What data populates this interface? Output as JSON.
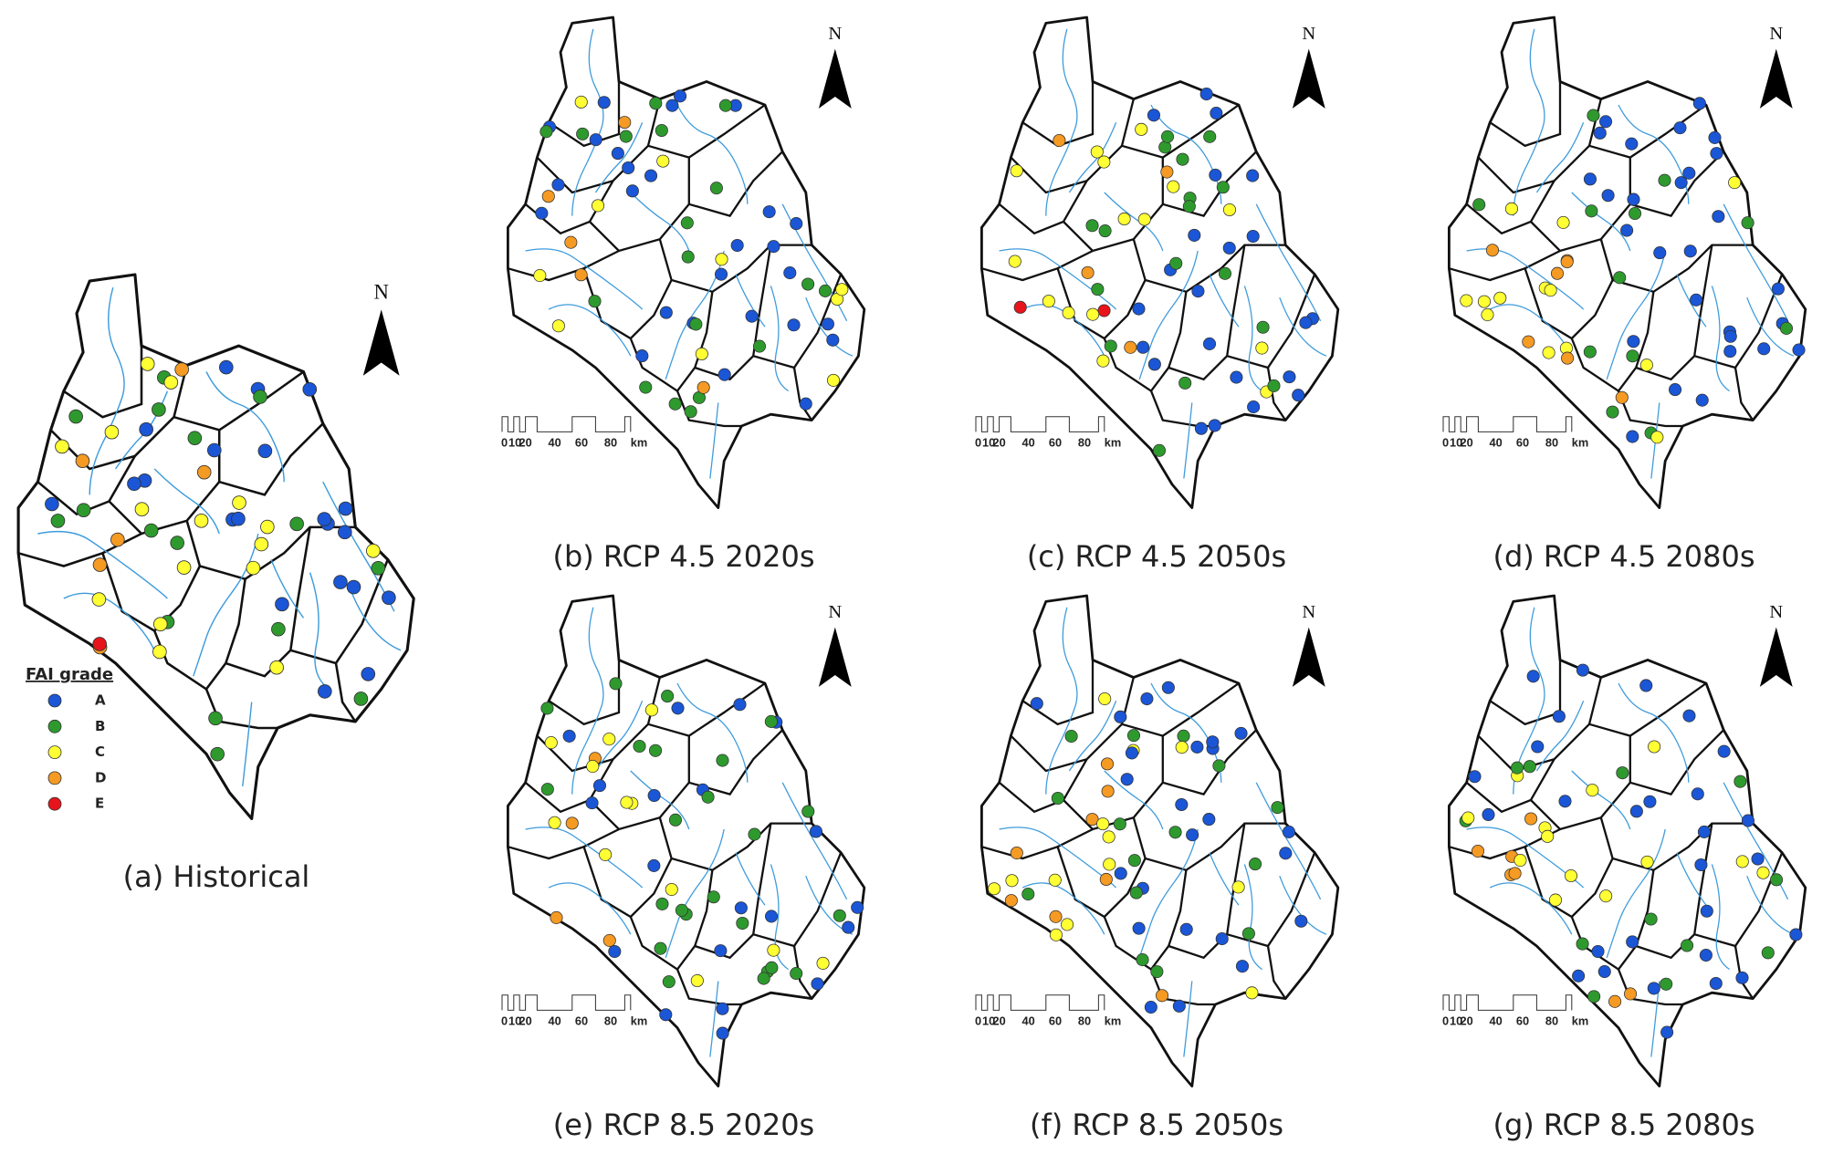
{
  "panels": [
    {
      "caption": "(a) Historical"
    },
    {
      "caption": "(b) RCP 4.5 2020s"
    },
    {
      "caption": "(c) RCP 4.5 2050s"
    },
    {
      "caption": "(d) RCP 4.5 2080s"
    },
    {
      "caption": "(e) RCP 8.5 2020s"
    },
    {
      "caption": "(f) RCP 8.5 2050s"
    },
    {
      "caption": "(g) RCP 8.5 2080s"
    }
  ],
  "legend": {
    "title": "FAI grade",
    "items": [
      {
        "label": "A",
        "color": "#1a56d6"
      },
      {
        "label": "B",
        "color": "#2e9a2e"
      },
      {
        "label": "C",
        "color": "#ffff33"
      },
      {
        "label": "D",
        "color": "#f59a23"
      },
      {
        "label": "E",
        "color": "#e8141b"
      }
    ]
  },
  "north_label": "N",
  "scale_bar": {
    "labels": [
      0,
      10,
      20,
      40,
      60,
      80
    ],
    "unit": "km"
  }
}
